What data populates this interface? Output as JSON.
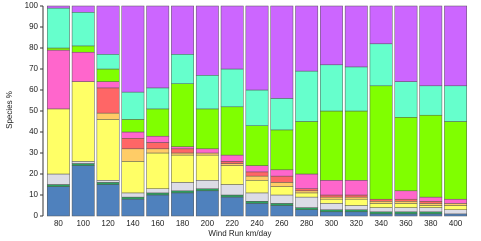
{
  "chart_data": {
    "type": "stacked-bar",
    "xlabel": "Wind Run km/day",
    "ylabel": "Species %",
    "categories": [
      "80",
      "100",
      "120",
      "140",
      "160",
      "180",
      "200",
      "220",
      "240",
      "260",
      "280",
      "300",
      "320",
      "340",
      "360",
      "380",
      "400"
    ],
    "ylim": [
      0,
      100
    ],
    "yticks": [
      0,
      10,
      20,
      30,
      40,
      50,
      60,
      70,
      80,
      90,
      100
    ],
    "series": [
      {
        "color": "#4f81bd",
        "values": [
          14,
          24,
          15,
          8,
          10,
          11,
          12,
          9,
          6,
          5,
          3,
          2,
          2,
          1,
          1,
          1,
          1
        ]
      },
      {
        "color": "#2ca25f",
        "values": [
          1,
          1,
          1,
          1,
          1,
          1,
          1,
          1,
          1,
          1,
          1,
          1,
          1,
          1,
          1,
          1,
          0
        ]
      },
      {
        "color": "#dcdce6",
        "values": [
          5,
          1,
          1,
          2,
          2,
          4,
          4,
          5,
          4,
          4,
          5,
          3,
          2,
          2,
          2,
          2,
          2
        ]
      },
      {
        "color": "#ffff66",
        "values": [
          31,
          38,
          29,
          15,
          17,
          13,
          12,
          9,
          6,
          4,
          2,
          2,
          3,
          2,
          2,
          1,
          2
        ]
      },
      {
        "color": "#ffcc66",
        "values": [
          0,
          0,
          3,
          6,
          2,
          1,
          1,
          1,
          2,
          2,
          1,
          1,
          1,
          1,
          1,
          1,
          1
        ]
      },
      {
        "color": "#ff6666",
        "values": [
          0,
          0,
          12,
          5,
          3,
          2,
          0,
          1,
          2,
          3,
          1,
          1,
          1,
          1,
          1,
          1,
          0
        ]
      },
      {
        "color": "#ff66cc",
        "values": [
          28,
          14,
          3,
          3,
          3,
          1,
          2,
          3,
          3,
          3,
          7,
          7,
          7,
          0,
          4,
          2,
          2
        ]
      },
      {
        "color": "#80ff00",
        "values": [
          1,
          3,
          6,
          6,
          13,
          30,
          19,
          23,
          19,
          19,
          25,
          33,
          33,
          54,
          35,
          39,
          37
        ]
      },
      {
        "color": "#66ffcc",
        "values": [
          19,
          16,
          7,
          13,
          10,
          14,
          16,
          18,
          17,
          15,
          24,
          22,
          21,
          20,
          17,
          14,
          17
        ]
      },
      {
        "color": "#cc66ff",
        "values": [
          1,
          3,
          23,
          41,
          39,
          23,
          33,
          30,
          40,
          44,
          31,
          28,
          29,
          18,
          36,
          38,
          38
        ]
      }
    ]
  }
}
